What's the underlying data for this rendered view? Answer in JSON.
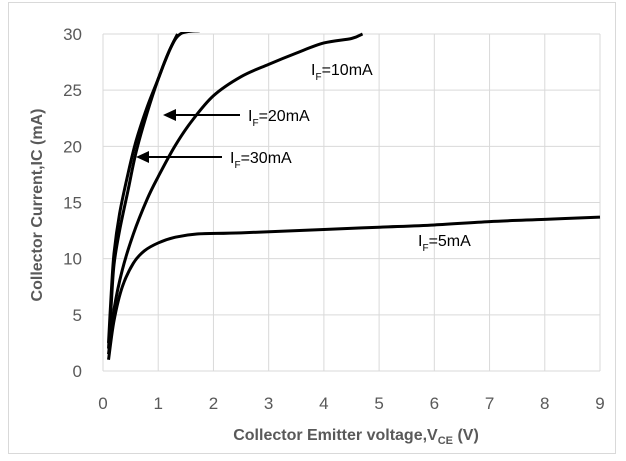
{
  "chart_data": {
    "type": "line",
    "xlabel": "Collector Emitter voltage,V",
    "xlabel_sub": "CE",
    "xlabel_unit": " (V)",
    "ylabel": "Collector Current,IC (mA)",
    "xlim": [
      0,
      9
    ],
    "ylim": [
      0,
      30
    ],
    "x_ticks": [
      "0",
      "1",
      "2",
      "3",
      "4",
      "5",
      "6",
      "7",
      "8",
      "9"
    ],
    "y_ticks": [
      "0",
      "5",
      "10",
      "15",
      "20",
      "25",
      "30"
    ],
    "grid": true,
    "series": [
      {
        "name": "IF=5mA",
        "points": [
          [
            0.1,
            1
          ],
          [
            0.2,
            4.5
          ],
          [
            0.35,
            7.5
          ],
          [
            0.55,
            9.6
          ],
          [
            0.75,
            10.7
          ],
          [
            1.0,
            11.4
          ],
          [
            1.3,
            11.9
          ],
          [
            1.7,
            12.2
          ],
          [
            2.5,
            12.3
          ],
          [
            4,
            12.6
          ],
          [
            5,
            12.8
          ],
          [
            6,
            13.0
          ],
          [
            7,
            13.3
          ],
          [
            8,
            13.5
          ],
          [
            9,
            13.7
          ]
        ]
      },
      {
        "name": "IF=10mA",
        "points": [
          [
            0.1,
            1.5
          ],
          [
            0.2,
            5.5
          ],
          [
            0.35,
            9
          ],
          [
            0.55,
            12.2
          ],
          [
            0.8,
            15.3
          ],
          [
            1.0,
            17.3
          ],
          [
            1.3,
            20
          ],
          [
            1.6,
            22.2
          ],
          [
            2.0,
            24.5
          ],
          [
            2.5,
            26.2
          ],
          [
            3.0,
            27.3
          ],
          [
            3.5,
            28.3
          ],
          [
            4.0,
            29.2
          ],
          [
            4.5,
            29.6
          ],
          [
            4.7,
            30
          ]
        ]
      },
      {
        "name": "IF=20mA",
        "points": [
          [
            0.1,
            2
          ],
          [
            0.15,
            6
          ],
          [
            0.2,
            9.5
          ],
          [
            0.3,
            12.5
          ],
          [
            0.45,
            16
          ],
          [
            0.6,
            19.5
          ],
          [
            0.8,
            23
          ],
          [
            1.0,
            26
          ],
          [
            1.2,
            28.5
          ],
          [
            1.35,
            30
          ]
        ]
      },
      {
        "name": "IF=30mA",
        "points": [
          [
            0.1,
            2.5
          ],
          [
            0.15,
            7
          ],
          [
            0.2,
            10.5
          ],
          [
            0.3,
            14
          ],
          [
            0.45,
            17.5
          ],
          [
            0.6,
            20.5
          ],
          [
            0.8,
            23.5
          ],
          [
            1.0,
            26
          ],
          [
            1.2,
            28.5
          ],
          [
            1.4,
            30
          ],
          [
            1.75,
            30.3
          ]
        ]
      }
    ],
    "annotations": [
      {
        "main": "I",
        "sub": "F",
        "rest": "=10mA"
      },
      {
        "main": "I",
        "sub": "F",
        "rest": "=20mA"
      },
      {
        "main": "I",
        "sub": "F",
        "rest": "=30mA"
      },
      {
        "main": "I",
        "sub": "F",
        "rest": "=5mA"
      }
    ]
  }
}
